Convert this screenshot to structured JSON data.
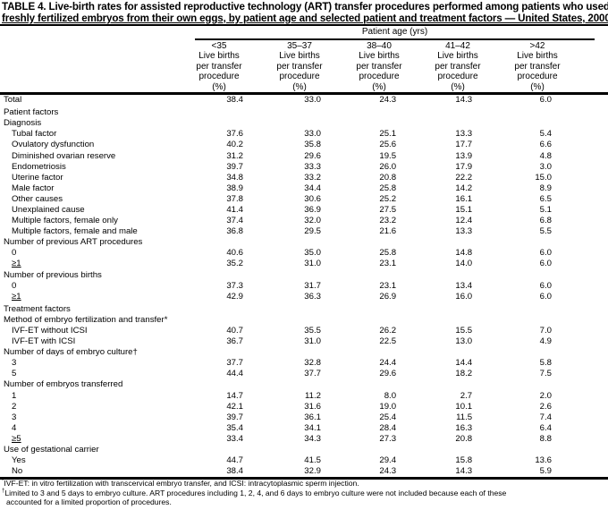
{
  "title": "TABLE 4. Live-birth rates for assisted reproductive technology (ART) transfer procedures performed among patients who used freshly fertilized embryos from their own eggs, by patient age and selected patient and treatment factors — United States, 2000",
  "title_line1": "TABLE 4. Live-birth rates for assisted reproductive technology (ART) transfer procedures performed among patients who used",
  "title_line2": "freshly fertilized embryos from their own eggs, by patient age and selected patient and treatment factors — United States, 2000",
  "spanner": "Patient age (yrs)",
  "columns": [
    {
      "age": "<35",
      "l1": "Live births",
      "l2": "per transfer",
      "l3": "procedure",
      "l4": "(%)"
    },
    {
      "age": "35–37",
      "l1": "Live births",
      "l2": "per transfer",
      "l3": "procedure",
      "l4": "(%)"
    },
    {
      "age": "38–40",
      "l1": "Live births",
      "l2": "per transfer",
      "l3": "procedure",
      "l4": "(%)"
    },
    {
      "age": "41–42",
      "l1": "Live births",
      "l2": "per transfer",
      "l3": "procedure",
      "l4": "(%)"
    },
    {
      "age": ">42",
      "l1": "Live births",
      "l2": "per transfer",
      "l3": "procedure",
      "l4": "(%)"
    }
  ],
  "rows": [
    {
      "label": "Total",
      "level": 0,
      "values": [
        "38.4",
        "33.0",
        "24.3",
        "14.3",
        "6.0"
      ]
    },
    {
      "label": "Patient factors",
      "level": 0,
      "values": []
    },
    {
      "label": "Diagnosis",
      "level": 0,
      "values": []
    },
    {
      "label": "Tubal factor",
      "level": 1,
      "values": [
        "37.6",
        "33.0",
        "25.1",
        "13.3",
        "5.4"
      ]
    },
    {
      "label": "Ovulatory dysfunction",
      "level": 1,
      "values": [
        "40.2",
        "35.8",
        "25.6",
        "17.7",
        "6.6"
      ]
    },
    {
      "label": "Diminished ovarian reserve",
      "level": 1,
      "values": [
        "31.2",
        "29.6",
        "19.5",
        "13.9",
        "4.8"
      ]
    },
    {
      "label": "Endometriosis",
      "level": 1,
      "values": [
        "39.7",
        "33.3",
        "26.0",
        "17.9",
        "3.0"
      ]
    },
    {
      "label": "Uterine factor",
      "level": 1,
      "values": [
        "34.8",
        "33.2",
        "20.8",
        "22.2",
        "15.0"
      ]
    },
    {
      "label": "Male factor",
      "level": 1,
      "values": [
        "38.9",
        "34.4",
        "25.8",
        "14.2",
        "8.9"
      ]
    },
    {
      "label": "Other causes",
      "level": 1,
      "values": [
        "37.8",
        "30.6",
        "25.2",
        "16.1",
        "6.5"
      ]
    },
    {
      "label": "Unexplained cause",
      "level": 1,
      "values": [
        "41.4",
        "36.9",
        "27.5",
        "15.1",
        "5.1"
      ]
    },
    {
      "label": "Multiple factors, female only",
      "level": 1,
      "values": [
        "37.4",
        "32.0",
        "23.2",
        "12.4",
        "6.8"
      ]
    },
    {
      "label": "Multiple factors, female and male",
      "level": 1,
      "values": [
        "36.8",
        "29.5",
        "21.6",
        "13.3",
        "5.5"
      ]
    },
    {
      "label": "Number of previous ART procedures",
      "level": 0,
      "values": []
    },
    {
      "label": "0",
      "level": 1,
      "values": [
        "40.6",
        "35.0",
        "25.8",
        "14.8",
        "6.0"
      ]
    },
    {
      "label": "≥1",
      "level": 1,
      "values": [
        "35.2",
        "31.0",
        "23.1",
        "14.0",
        "6.0"
      ]
    },
    {
      "label": "Number of previous births",
      "level": 0,
      "values": []
    },
    {
      "label": "0",
      "level": 1,
      "values": [
        "37.3",
        "31.7",
        "23.1",
        "13.4",
        "6.0"
      ]
    },
    {
      "label": "≥1",
      "level": 1,
      "values": [
        "42.9",
        "36.3",
        "26.9",
        "16.0",
        "6.0"
      ]
    },
    {
      "label": "Treatment factors",
      "level": 0,
      "values": []
    },
    {
      "label": "Method of embryo fertilization and transfer*",
      "level": 0,
      "values": []
    },
    {
      "label": "IVF-ET without ICSI",
      "level": 1,
      "values": [
        "40.7",
        "35.5",
        "26.2",
        "15.5",
        "7.0"
      ]
    },
    {
      "label": "IVF-ET with ICSI",
      "level": 1,
      "values": [
        "36.7",
        "31.0",
        "22.5",
        "13.0",
        "4.9"
      ]
    },
    {
      "label": "Number of days of embryo culture†",
      "level": 0,
      "values": []
    },
    {
      "label": "3",
      "level": 1,
      "values": [
        "37.7",
        "32.8",
        "24.4",
        "14.4",
        "5.8"
      ]
    },
    {
      "label": "5",
      "level": 1,
      "values": [
        "44.4",
        "37.7",
        "29.6",
        "18.2",
        "7.5"
      ]
    },
    {
      "label": "Number of embryos transferred",
      "level": 0,
      "values": []
    },
    {
      "label": "1",
      "level": 1,
      "values": [
        "14.7",
        "11.2",
        "8.0",
        "2.7",
        "2.0"
      ]
    },
    {
      "label": "2",
      "level": 1,
      "values": [
        "42.1",
        "31.6",
        "19.0",
        "10.1",
        "2.6"
      ]
    },
    {
      "label": "3",
      "level": 1,
      "values": [
        "39.7",
        "36.1",
        "25.4",
        "11.5",
        "7.4"
      ]
    },
    {
      "label": "4",
      "level": 1,
      "values": [
        "35.4",
        "34.1",
        "28.4",
        "16.3",
        "6.4"
      ]
    },
    {
      "label": "≥5",
      "level": 1,
      "values": [
        "33.4",
        "34.3",
        "27.3",
        "20.8",
        "8.8"
      ]
    },
    {
      "label": "Use of gestational carrier",
      "level": 0,
      "values": []
    },
    {
      "label": "Yes",
      "level": 1,
      "values": [
        "44.7",
        "41.5",
        "29.4",
        "15.8",
        "13.6"
      ]
    },
    {
      "label": "No",
      "level": 1,
      "values": [
        "38.4",
        "32.9",
        "24.3",
        "14.3",
        "5.9"
      ]
    }
  ],
  "footnotes": [
    {
      "mark": "*",
      "text": "IVF-ET: in vitro fertilization with transcervical embryo transfer, and ICSI: intracytoplasmic sperm injection."
    },
    {
      "mark": "†",
      "text": "Limited to 3 and 5 days to embryo culture. ART procedures including 1, 2, 4, and 6 days to embryo culture were not included because each of these"
    },
    {
      "mark": "",
      "text": "accounted for a limited proportion of procedures."
    }
  ]
}
